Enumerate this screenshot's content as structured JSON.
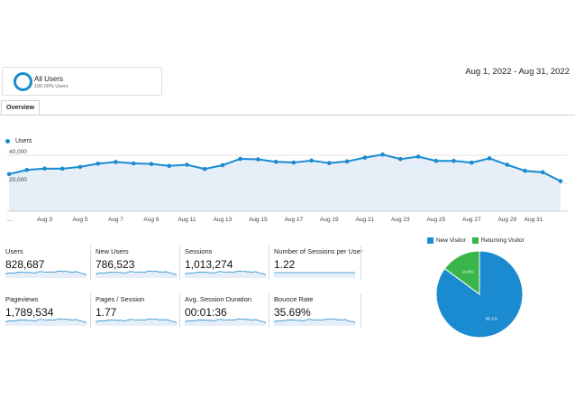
{
  "segment": {
    "name": "All Users",
    "percent": "100.00% Users"
  },
  "date_range": "Aug 1, 2022 - Aug 31, 2022",
  "tabs": [
    {
      "label": "Overview"
    }
  ],
  "chart_data": [
    {
      "type": "line",
      "series": [
        {
          "name": "Users",
          "values": [
            26500,
            29500,
            30500,
            30400,
            31700,
            34000,
            35200,
            34200,
            33800,
            32400,
            33200,
            30200,
            32900,
            37400,
            37100,
            35300,
            34800,
            36200,
            34400,
            35600,
            38300,
            40500,
            37300,
            39000,
            36000,
            36000,
            34700,
            37800,
            33200,
            28900,
            27800,
            21500
          ]
        }
      ],
      "x": [
        0,
        1,
        2,
        3,
        4,
        5,
        6,
        7,
        8,
        9,
        10,
        11,
        12,
        13,
        14,
        15,
        16,
        17,
        18,
        19,
        20,
        21,
        22,
        23,
        24,
        25,
        26,
        27,
        28,
        29,
        30,
        31
      ],
      "x_tick_labels": [
        "...",
        "Aug 3",
        "Aug 5",
        "Aug 7",
        "Aug 9",
        "Aug 11",
        "Aug 13",
        "Aug 15",
        "Aug 17",
        "Aug 19",
        "Aug 21",
        "Aug 23",
        "Aug 25",
        "Aug 27",
        "Aug 29",
        "Aug 31"
      ],
      "y_tick_labels": [
        "40,000",
        "20,000"
      ],
      "ylim": [
        0,
        40000
      ],
      "legend": "top-left",
      "color": "#1a8bd0"
    },
    {
      "type": "pie",
      "categories": [
        "New Visitor",
        "Returning Visitor"
      ],
      "values": [
        85.1,
        14.9
      ],
      "slice_labels": [
        "85.1%",
        "14.9%"
      ],
      "colors": [
        "#1a8bd0",
        "#39b54a"
      ],
      "legend": "top"
    }
  ],
  "metrics": [
    {
      "label": "Users",
      "value": "828,687"
    },
    {
      "label": "New Users",
      "value": "786,523"
    },
    {
      "label": "Sessions",
      "value": "1,013,274"
    },
    {
      "label": "Number of Sessions per User",
      "value": "1.22"
    },
    {
      "label": "Pageviews",
      "value": "1,789,534"
    },
    {
      "label": "Pages / Session",
      "value": "1.77"
    },
    {
      "label": "Avg. Session Duration",
      "value": "00:01:36"
    },
    {
      "label": "Bounce Rate",
      "value": "35.69%"
    }
  ]
}
